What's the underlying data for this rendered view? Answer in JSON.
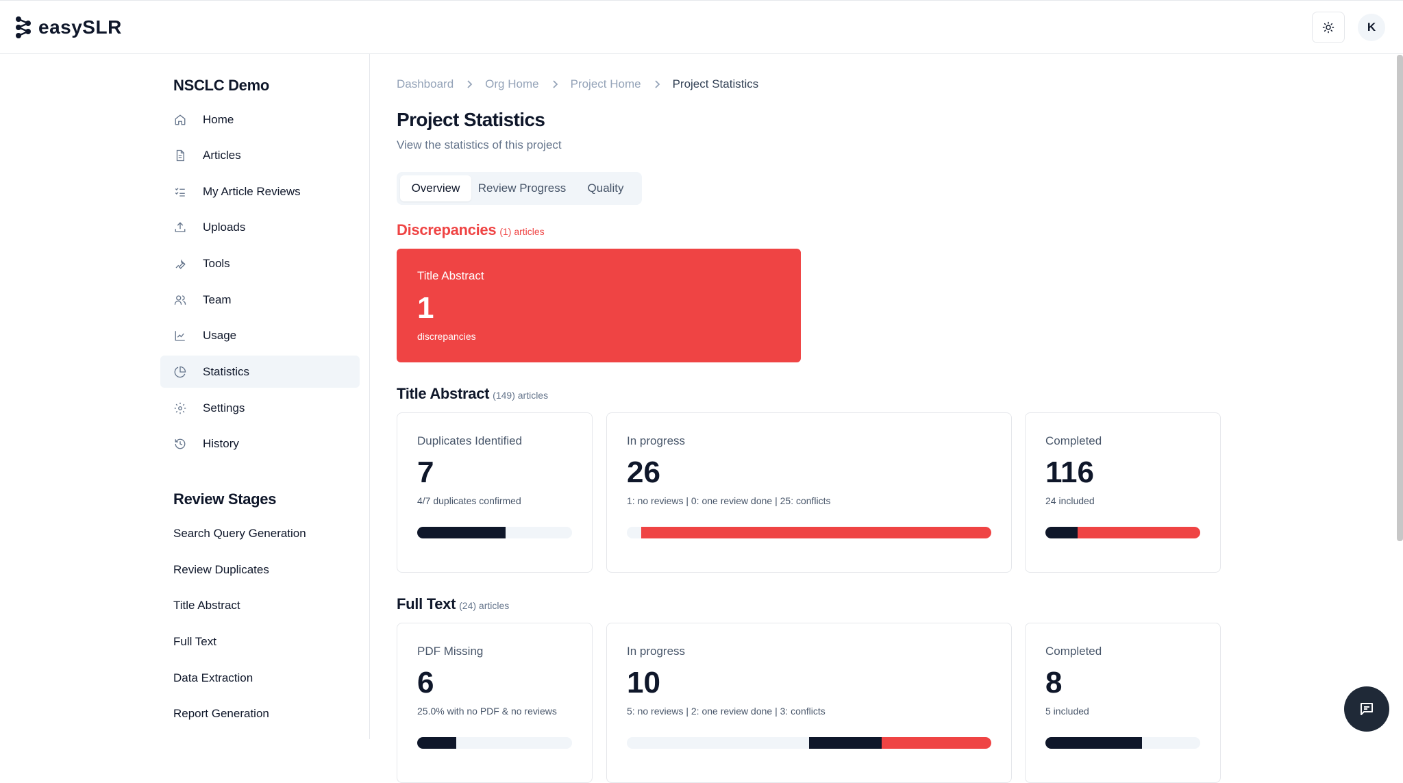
{
  "app": {
    "name": "easySLR",
    "user_initial": "K"
  },
  "sidebar": {
    "project_name": "NSCLC Demo",
    "items": [
      {
        "label": "Home",
        "icon": "home-icon"
      },
      {
        "label": "Articles",
        "icon": "document-icon"
      },
      {
        "label": "My Article Reviews",
        "icon": "checklist-icon"
      },
      {
        "label": "Uploads",
        "icon": "upload-icon"
      },
      {
        "label": "Tools",
        "icon": "wrench-icon"
      },
      {
        "label": "Team",
        "icon": "users-icon"
      },
      {
        "label": "Usage",
        "icon": "line-chart-icon"
      },
      {
        "label": "Statistics",
        "icon": "pie-chart-icon",
        "active": true
      },
      {
        "label": "Settings",
        "icon": "gear-icon"
      },
      {
        "label": "History",
        "icon": "history-icon"
      }
    ],
    "stages_title": "Review Stages",
    "stages": [
      "Search Query Generation",
      "Review Duplicates",
      "Title Abstract",
      "Full Text",
      "Data Extraction",
      "Report Generation"
    ]
  },
  "breadcrumb": [
    "Dashboard",
    "Org Home",
    "Project Home",
    "Project Statistics"
  ],
  "page": {
    "title": "Project Statistics",
    "subtitle": "View the statistics of this project"
  },
  "tabs": [
    {
      "label": "Overview",
      "active": true
    },
    {
      "label": "Review Progress",
      "active": false
    },
    {
      "label": "Quality",
      "active": false
    }
  ],
  "discrepancies": {
    "title": "Discrepancies",
    "count_label": "(1) articles",
    "card": {
      "label": "Title Abstract",
      "value": "1",
      "sub": "discrepancies"
    }
  },
  "title_abstract": {
    "title": "Title Abstract",
    "count_label": "(149) articles",
    "cards": [
      {
        "label": "Duplicates Identified",
        "value": "7",
        "sub": "4/7 duplicates confirmed",
        "bar": [
          {
            "c": "dark",
            "v": 0.57
          },
          {
            "c": "light",
            "v": 0.43
          }
        ]
      },
      {
        "label": "In progress",
        "value": "26",
        "sub": "1: no reviews | 0: one review done | 25: conflicts",
        "bar": [
          {
            "c": "light",
            "v": 0.04
          },
          {
            "c": "red",
            "v": 0.96
          }
        ]
      },
      {
        "label": "Completed",
        "value": "116",
        "sub": "24 included",
        "bar": [
          {
            "c": "dark",
            "v": 0.207
          },
          {
            "c": "red",
            "v": 0.793
          }
        ]
      }
    ]
  },
  "full_text": {
    "title": "Full Text",
    "count_label": "(24) articles",
    "cards": [
      {
        "label": "PDF Missing",
        "value": "6",
        "sub": "25.0% with no PDF & no reviews",
        "bar": [
          {
            "c": "dark",
            "v": 0.25
          },
          {
            "c": "light",
            "v": 0.75
          }
        ]
      },
      {
        "label": "In progress",
        "value": "10",
        "sub": "5: no reviews | 2: one review done | 3: conflicts",
        "bar": [
          {
            "c": "light",
            "v": 0.5
          },
          {
            "c": "dark",
            "v": 0.2
          },
          {
            "c": "red",
            "v": 0.3
          }
        ]
      },
      {
        "label": "Completed",
        "value": "8",
        "sub": "5 included",
        "bar": [
          {
            "c": "dark",
            "v": 0.625
          },
          {
            "c": "light",
            "v": 0.375
          }
        ]
      }
    ]
  },
  "colors": {
    "accent_red": "#ef4444",
    "dark": "#0f172a",
    "muted": "#64748b"
  }
}
